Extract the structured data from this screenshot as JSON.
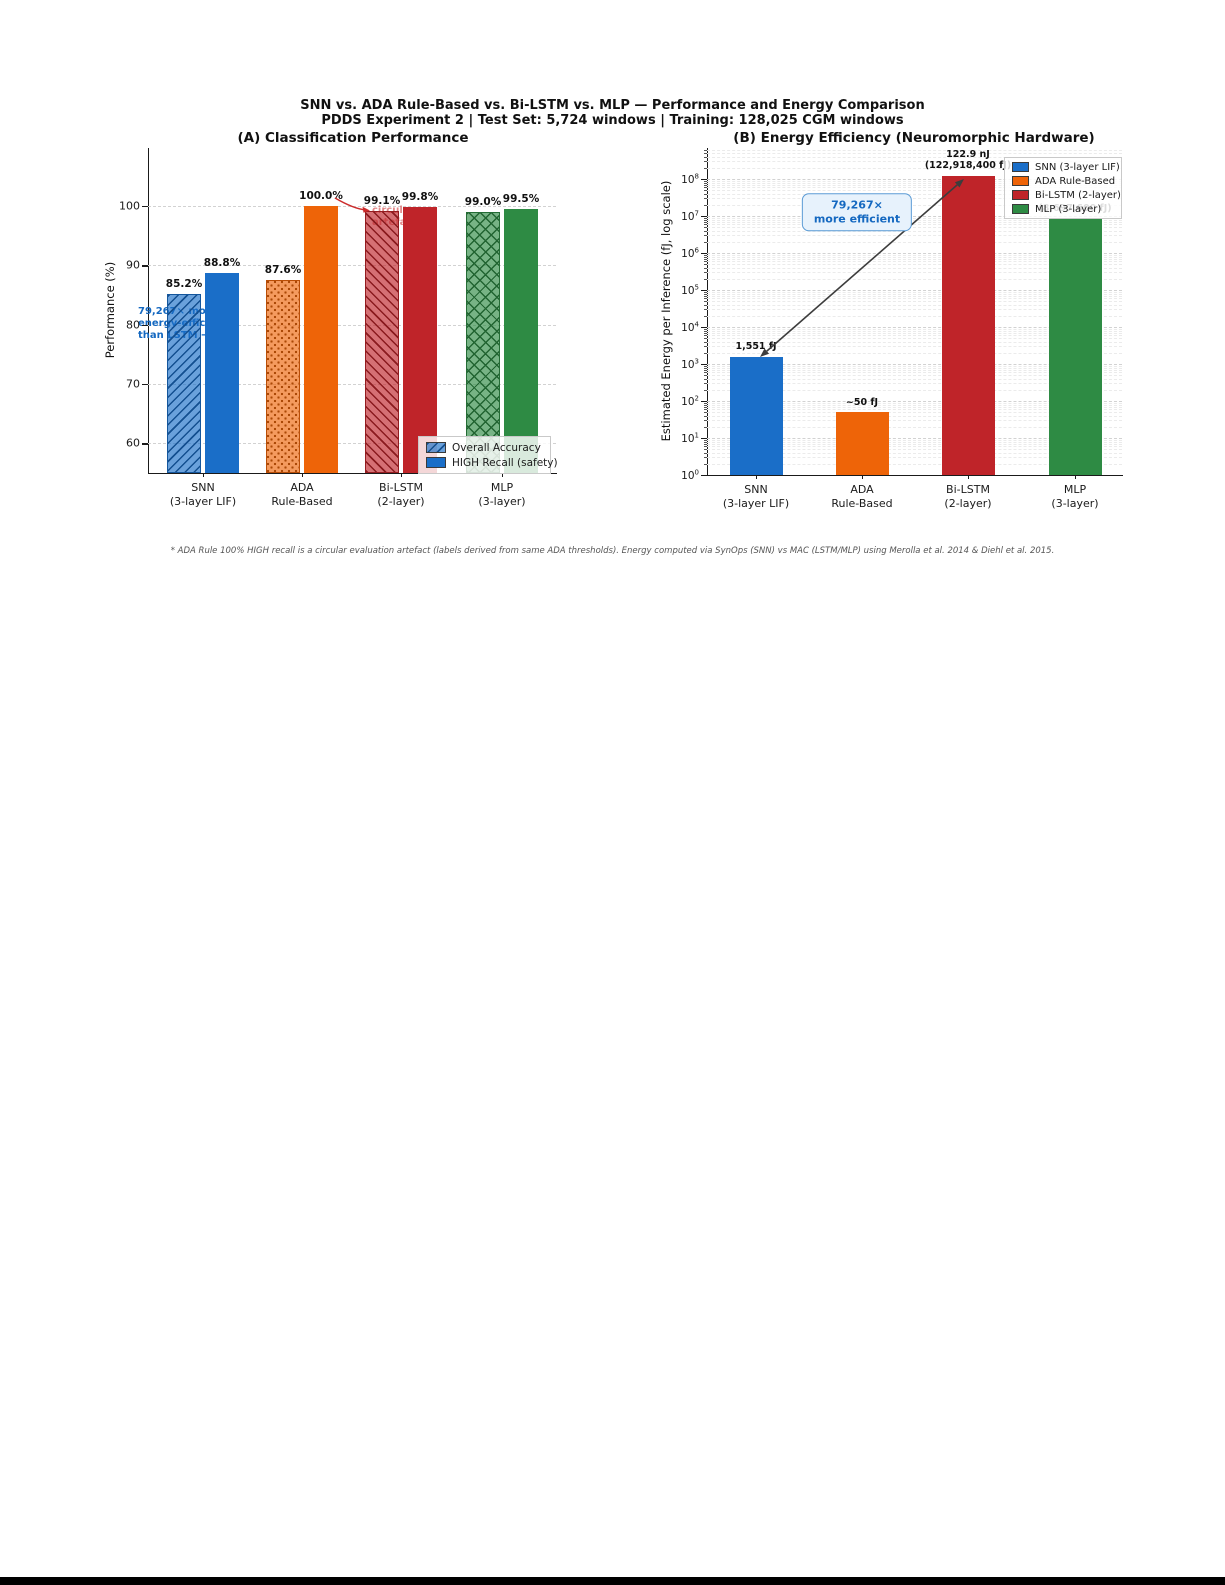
{
  "figure": {
    "title_line1": "SNN vs. ADA Rule-Based vs. Bi-LSTM vs. MLP — Performance and Energy Comparison",
    "title_line2": "PDDS Experiment 2  |  Test Set: 5,724 windows  |  Training: 128,025 CGM windows",
    "footnote": "* ADA Rule 100% HIGH recall is a circular evaluation artefact (labels derived from same ADA thresholds). Energy computed via SynOps (SNN) vs MAC (LSTM/MLP) using Merolla et al. 2014 & Diehl et al. 2015."
  },
  "colors": {
    "snn_blue": "#1a6ec8",
    "ada_orange": "#ee6408",
    "bilstm_red": "#bf2429",
    "mlp_green": "#2e8b44",
    "annotation_blue": "#1468c0",
    "annotation_red": "#cc2a2a",
    "arrow_gray": "#3d3d3d"
  },
  "chart_data": [
    {
      "type": "bar",
      "panel": "A",
      "title": "(A)  Classification Performance",
      "ylabel": "Performance (%)",
      "ylim": [
        55,
        109.8
      ],
      "yticks": [
        60,
        70,
        80,
        90,
        100
      ],
      "grid": "dashed horizontal",
      "categories": [
        "SNN\n(3-layer LIF)",
        "ADA\nRule-Based",
        "Bi-LSTM\n(2-layer)",
        "MLP\n(3-layer)"
      ],
      "category_colors": [
        "#1a6ec8",
        "#ee6408",
        "#bf2429",
        "#2e8b44"
      ],
      "category_hatches": [
        "/",
        ".",
        "\\",
        "x"
      ],
      "series": [
        {
          "name": "Overall Accuracy",
          "style": "hatched",
          "values": [
            85.2,
            87.6,
            99.1,
            99.0
          ],
          "labels": [
            "85.2%",
            "87.6%",
            "99.1%",
            "99.0%"
          ]
        },
        {
          "name": "HIGH Recall (safety)",
          "style": "solid",
          "values": [
            88.8,
            100.0,
            99.8,
            99.5
          ],
          "labels": [
            "88.8%",
            "100.0%",
            "99.8%",
            "99.5%"
          ]
        }
      ],
      "legend": {
        "position": "lower right",
        "entries": [
          "Overall Accuracy",
          "HIGH Recall (safety)"
        ]
      },
      "annotations": [
        {
          "id": "efficiency-note",
          "text": "79,267× more\nenergy-efficient\nthan LSTM →",
          "color": "#1468c0"
        },
        {
          "id": "circular-artefact-note",
          "text": "circular\nartefact",
          "color": "#cc2a2a",
          "occluded_by_bar": true
        }
      ]
    },
    {
      "type": "bar",
      "panel": "B",
      "title": "(B)  Energy Efficiency (Neuromorphic Hardware)",
      "ylabel": "Estimated Energy per Inference (fJ, log scale)",
      "yscale": "log",
      "ytick_exponents": [
        0,
        1,
        2,
        3,
        4,
        5,
        6,
        7,
        8
      ],
      "ylim_exponents": [
        0,
        8.84
      ],
      "grid": "dashed horizontal with log minors",
      "categories": [
        "SNN\n(3-layer LIF)",
        "ADA\nRule-Based",
        "Bi-LSTM\n(2-layer)",
        "MLP\n(3-layer)"
      ],
      "category_colors": [
        "#1a6ec8",
        "#ee6408",
        "#bf2429",
        "#2e8b44"
      ],
      "values": [
        1551,
        50,
        122918400,
        8697600
      ],
      "bar_labels": [
        "1,551 fJ",
        "~50 fJ",
        "122.9 nJ\n(122,918,400 fJ)",
        "(8,697,600 fJ)"
      ],
      "bar_label_occluded_by_legend": [
        false,
        false,
        false,
        true
      ],
      "legend": {
        "position": "upper right",
        "entries": [
          "SNN (3-layer LIF)",
          "ADA Rule-Based",
          "Bi-LSTM (2-layer)",
          "MLP (3-layer)"
        ]
      },
      "annotations": [
        {
          "id": "efficiency-callout",
          "text": "79,267×\nmore efficient",
          "color": "#1468c0"
        }
      ]
    }
  ]
}
